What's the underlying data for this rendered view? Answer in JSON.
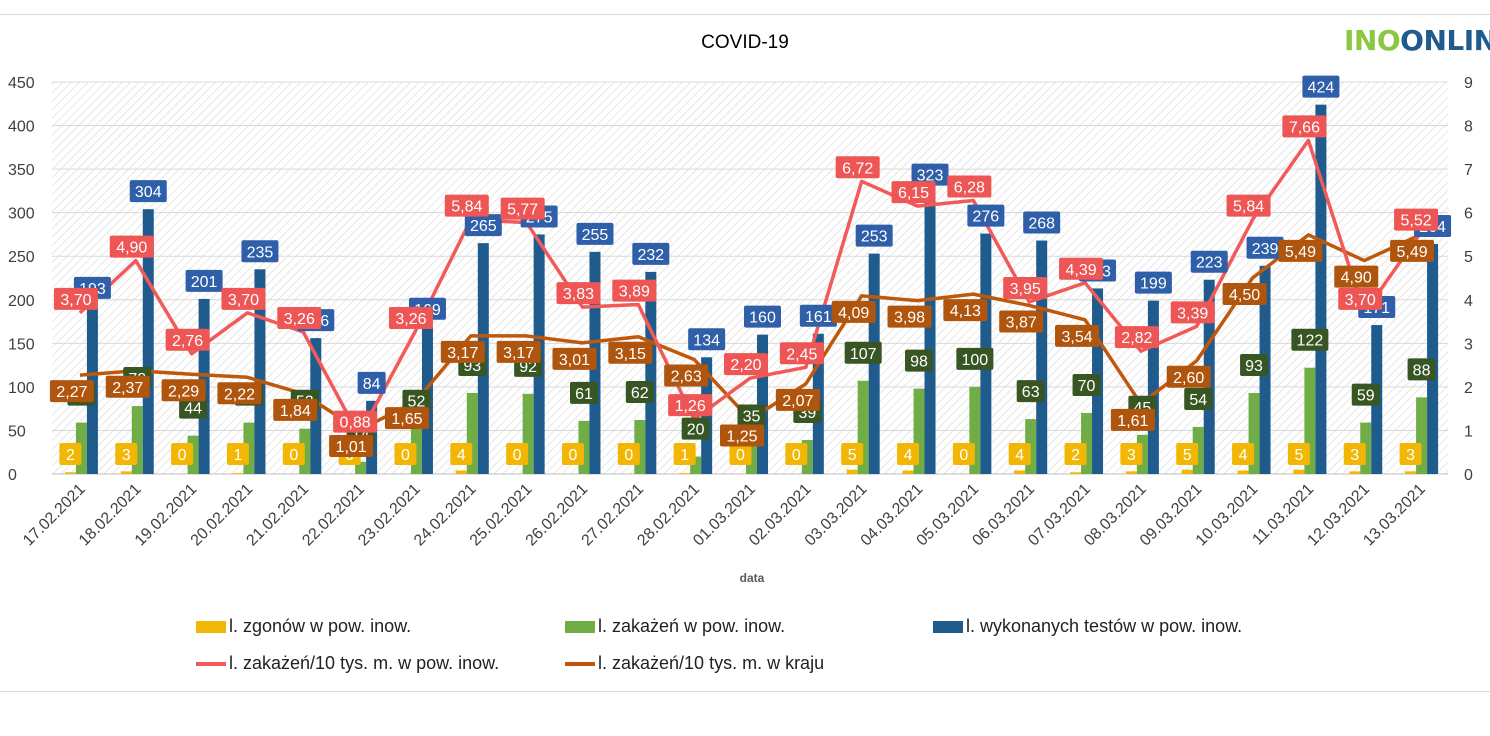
{
  "title": "COVID-19",
  "logo_text": "INOONLIN",
  "colors": {
    "deaths": "#f2b705",
    "infections": "#70ad47",
    "tests": "#1f5b8c",
    "local_rate": "#f25a5a",
    "country_rate": "#c0580c"
  },
  "chart_data": {
    "type": "bar",
    "title": "COVID-19",
    "xlabel": "data",
    "ylim": [
      0,
      450
    ],
    "y2lim": [
      0,
      9
    ],
    "y_ticks": [
      "0",
      "50",
      "100",
      "150",
      "200",
      "250",
      "300",
      "350",
      "400",
      "450"
    ],
    "y2_ticks": [
      "0",
      "1",
      "2",
      "3",
      "4",
      "5",
      "6",
      "7",
      "8",
      "9"
    ],
    "categories": [
      "17.02.2021",
      "18.02.2021",
      "19.02.2021",
      "20.02.2021",
      "21.02.2021",
      "22.02.2021",
      "23.02.2021",
      "24.02.2021",
      "25.02.2021",
      "26.02.2021",
      "27.02.2021",
      "28.02.2021",
      "01.03.2021",
      "02.03.2021",
      "03.03.2021",
      "04.03.2021",
      "05.03.2021",
      "06.03.2021",
      "07.03.2021",
      "08.03.2021",
      "09.03.2021",
      "10.03.2021",
      "11.03.2021",
      "12.03.2021",
      "13.03.2021"
    ],
    "series": [
      {
        "name": "l. zgonów w pow. inow.",
        "axis": "left",
        "kind": "bar",
        "values": [
          2,
          3,
          0,
          1,
          0,
          0,
          0,
          4,
          0,
          0,
          0,
          1,
          0,
          0,
          5,
          4,
          0,
          4,
          2,
          3,
          5,
          4,
          5,
          3,
          3
        ],
        "labels": [
          "2",
          "3",
          "0",
          "1",
          "0",
          "0",
          "0",
          "4",
          "0",
          "0",
          "0",
          "1",
          "0",
          "0",
          "5",
          "4",
          "0",
          "4",
          "2",
          "3",
          "5",
          "4",
          "5",
          "3",
          "3"
        ]
      },
      {
        "name": "l. zakażeń w pow. inow.",
        "axis": "left",
        "kind": "bar",
        "values": [
          59,
          78,
          44,
          59,
          52,
          14,
          52,
          93,
          92,
          61,
          62,
          20,
          35,
          39,
          107,
          98,
          100,
          63,
          70,
          45,
          54,
          93,
          122,
          59,
          88
        ],
        "labels": [
          "59",
          "78",
          "44",
          "59",
          "52",
          "14",
          "52",
          "93",
          "92",
          "61",
          "62",
          "20",
          "35",
          "39",
          "107",
          "98",
          "100",
          "63",
          "70",
          "45",
          "54",
          "93",
          "122",
          "59",
          "88"
        ]
      },
      {
        "name": "l. wykonanych testów w pow. inow.",
        "axis": "left",
        "kind": "bar",
        "values": [
          193,
          304,
          201,
          235,
          156,
          84,
          169,
          265,
          275,
          255,
          232,
          134,
          160,
          161,
          253,
          323,
          276,
          268,
          213,
          199,
          223,
          239,
          424,
          171,
          264
        ],
        "labels": [
          "193",
          "304",
          "201",
          "235",
          "156",
          "84",
          "169",
          "265",
          "275",
          "255",
          "232",
          "134",
          "160",
          "161",
          "253",
          "323",
          "276",
          "268",
          "213",
          "199",
          "223",
          "239",
          "424",
          "171",
          "264"
        ]
      },
      {
        "name": "l. zakażeń/10 tys. m. w pow. inow.",
        "axis": "right",
        "kind": "line",
        "values": [
          3.7,
          4.9,
          2.76,
          3.7,
          3.26,
          0.88,
          3.26,
          5.84,
          5.77,
          3.83,
          3.89,
          1.26,
          2.2,
          2.45,
          6.72,
          6.15,
          6.28,
          3.95,
          4.39,
          2.82,
          3.39,
          5.84,
          7.66,
          3.7,
          5.52
        ],
        "labels": [
          "3,70",
          "4,90",
          "2,76",
          "3,70",
          "3,26",
          "0,88",
          "3,26",
          "5,84",
          "5,77",
          "3,83",
          "3,89",
          "1,26",
          "2,20",
          "2,45",
          "6,72",
          "6,15",
          "6,28",
          "3,95",
          "4,39",
          "2,82",
          "3,39",
          "5,84",
          "7,66",
          "3,70",
          "5,52"
        ]
      },
      {
        "name": "l. zakażeń/10 tys. m. w kraju",
        "axis": "right",
        "kind": "line",
        "values": [
          2.27,
          2.37,
          2.29,
          2.22,
          1.84,
          1.01,
          1.65,
          3.17,
          3.17,
          3.01,
          3.15,
          2.63,
          1.25,
          2.07,
          4.09,
          3.98,
          4.13,
          3.87,
          3.54,
          1.61,
          2.6,
          4.5,
          5.49,
          4.9,
          5.49
        ],
        "labels": [
          "2,27",
          "2,37",
          "2,29",
          "2,22",
          "1,84",
          "1,01",
          "1,65",
          "3,17",
          "3,17",
          "3,01",
          "3,15",
          "2,63",
          "1,25",
          "2,07",
          "4,09",
          "3,98",
          "4,13",
          "3,87",
          "3,54",
          "1,61",
          "2,60",
          "4,50",
          "5,49",
          "4,90",
          "5,49"
        ]
      }
    ],
    "grid": true,
    "legend_position": "bottom"
  }
}
